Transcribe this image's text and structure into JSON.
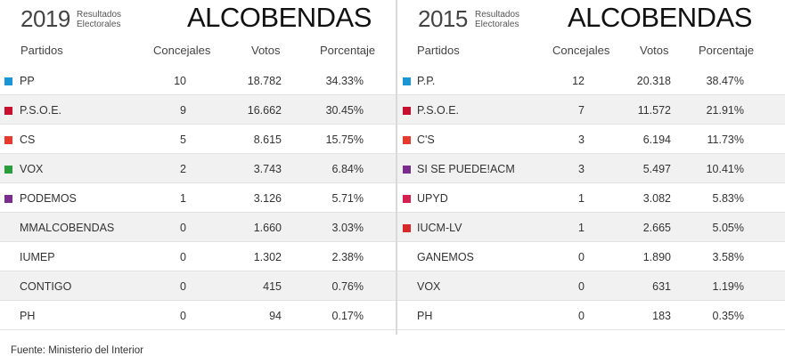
{
  "left": {
    "year": "2019",
    "subtitle_line1": "Resultados",
    "subtitle_line2": "Electorales",
    "city": "ALCOBENDAS",
    "headers": {
      "party": "Partidos",
      "councillors": "Concejales",
      "votes": "Votos",
      "percent": "Porcentaje"
    },
    "rows": [
      {
        "party": "PP",
        "councillors": "10",
        "votes": "18.782",
        "percent": "34.33%",
        "color": "#1a96d4"
      },
      {
        "party": "P.S.O.E.",
        "councillors": "9",
        "votes": "16.662",
        "percent": "30.45%",
        "color": "#c8102e"
      },
      {
        "party": "CS",
        "councillors": "5",
        "votes": "8.615",
        "percent": "15.75%",
        "color": "#e63a2e"
      },
      {
        "party": "VOX",
        "councillors": "2",
        "votes": "3.743",
        "percent": "6.84%",
        "color": "#2a9d3c"
      },
      {
        "party": "PODEMOS",
        "councillors": "1",
        "votes": "3.126",
        "percent": "5.71%",
        "color": "#7b2d8e"
      },
      {
        "party": "MMALCOBENDAS",
        "councillors": "0",
        "votes": "1.660",
        "percent": "3.03%",
        "color": ""
      },
      {
        "party": "IUMEP",
        "councillors": "0",
        "votes": "1.302",
        "percent": "2.38%",
        "color": ""
      },
      {
        "party": "CONTIGO",
        "councillors": "0",
        "votes": "415",
        "percent": "0.76%",
        "color": ""
      },
      {
        "party": "PH",
        "councillors": "0",
        "votes": "94",
        "percent": "0.17%",
        "color": ""
      }
    ]
  },
  "right": {
    "year": "2015",
    "subtitle_line1": "Resultados",
    "subtitle_line2": "Electorales",
    "city": "ALCOBENDAS",
    "headers": {
      "party": "Partidos",
      "councillors": "Concejales",
      "votes": "Votos",
      "percent": "Porcentaje"
    },
    "rows": [
      {
        "party": "P.P.",
        "councillors": "12",
        "votes": "20.318",
        "percent": "38.47%",
        "color": "#1a96d4"
      },
      {
        "party": "P.S.O.E.",
        "councillors": "7",
        "votes": "11.572",
        "percent": "21.91%",
        "color": "#c8102e"
      },
      {
        "party": "C'S",
        "councillors": "3",
        "votes": "6.194",
        "percent": "11.73%",
        "color": "#e63a2e"
      },
      {
        "party": "SI SE PUEDE!ACM",
        "councillors": "3",
        "votes": "5.497",
        "percent": "10.41%",
        "color": "#7b2d8e"
      },
      {
        "party": "UPYD",
        "councillors": "1",
        "votes": "3.082",
        "percent": "5.83%",
        "color": "#d6204f"
      },
      {
        "party": "IUCM-LV",
        "councillors": "1",
        "votes": "2.665",
        "percent": "5.05%",
        "color": "#d92828"
      },
      {
        "party": "GANEMOS",
        "councillors": "0",
        "votes": "1.890",
        "percent": "3.58%",
        "color": ""
      },
      {
        "party": "VOX",
        "councillors": "0",
        "votes": "631",
        "percent": "1.19%",
        "color": ""
      },
      {
        "party": "PH",
        "councillors": "0",
        "votes": "183",
        "percent": "0.35%",
        "color": ""
      }
    ]
  },
  "source": "Fuente: Ministerio del Interior"
}
